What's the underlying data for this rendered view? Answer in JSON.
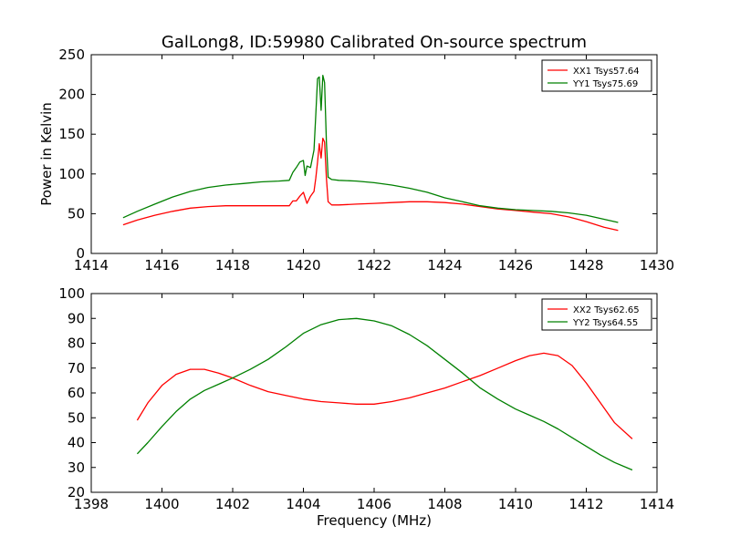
{
  "figure": {
    "title": "GalLong8, ID:59980 Calibrated On-source spectrum",
    "background": "#ffffff"
  },
  "chart_data": [
    {
      "type": "line",
      "title": "GalLong8, ID:59980 Calibrated On-source spectrum",
      "xlabel": "",
      "ylabel": "Power in Kelvin",
      "xlim": [
        1414,
        1430
      ],
      "ylim": [
        0,
        250
      ],
      "xticks": [
        "1414",
        "1416",
        "1418",
        "1420",
        "1422",
        "1424",
        "1426",
        "1428",
        "1430"
      ],
      "yticks": [
        "0",
        "50",
        "100",
        "150",
        "200",
        "250"
      ],
      "grid": false,
      "legend_position": "top-right",
      "series": [
        {
          "name": "XX1 Tsys57.64",
          "color": "#ff0000",
          "x": [
            1414.9,
            1415.3,
            1415.8,
            1416.3,
            1416.8,
            1417.3,
            1417.8,
            1418.3,
            1418.8,
            1419.3,
            1419.6,
            1419.7,
            1419.8,
            1419.9,
            1420.0,
            1420.05,
            1420.1,
            1420.2,
            1420.3,
            1420.35,
            1420.4,
            1420.45,
            1420.5,
            1420.55,
            1420.6,
            1420.65,
            1420.7,
            1420.8,
            1421.0,
            1421.5,
            1422.0,
            1422.5,
            1423.0,
            1423.5,
            1424.0,
            1424.5,
            1425.0,
            1425.5,
            1426.0,
            1426.5,
            1427.0,
            1427.5,
            1428.0,
            1428.5,
            1428.9
          ],
          "y": [
            36,
            42,
            48,
            53,
            57,
            59,
            60,
            60,
            60,
            60,
            60,
            66,
            66,
            72,
            77,
            70,
            63,
            72,
            78,
            95,
            115,
            138,
            120,
            145,
            140,
            95,
            65,
            61,
            61,
            62,
            63,
            64,
            65,
            65,
            64,
            62,
            59,
            56,
            54,
            52,
            50,
            46,
            40,
            33,
            29
          ]
        },
        {
          "name": "YY1 Tsys75.69",
          "color": "#008000",
          "x": [
            1414.9,
            1415.3,
            1415.8,
            1416.3,
            1416.8,
            1417.3,
            1417.8,
            1418.3,
            1418.8,
            1419.3,
            1419.6,
            1419.7,
            1419.8,
            1419.9,
            1420.0,
            1420.05,
            1420.1,
            1420.2,
            1420.3,
            1420.35,
            1420.4,
            1420.45,
            1420.5,
            1420.55,
            1420.6,
            1420.65,
            1420.7,
            1420.8,
            1421.0,
            1421.5,
            1422.0,
            1422.5,
            1423.0,
            1423.5,
            1424.0,
            1424.5,
            1425.0,
            1425.5,
            1426.0,
            1426.5,
            1427.0,
            1427.5,
            1428.0,
            1428.5,
            1428.9
          ],
          "y": [
            45,
            53,
            62,
            71,
            78,
            83,
            86,
            88,
            90,
            91,
            92,
            102,
            108,
            115,
            117,
            98,
            110,
            108,
            130,
            175,
            220,
            222,
            180,
            224,
            215,
            140,
            96,
            93,
            92,
            91,
            89,
            86,
            82,
            77,
            70,
            65,
            60,
            57,
            55,
            54,
            53,
            51,
            48,
            43,
            39
          ]
        }
      ]
    },
    {
      "type": "line",
      "title": "",
      "xlabel": "Frequency (MHz)",
      "ylabel": "",
      "xlim": [
        1398,
        1414
      ],
      "ylim": [
        20,
        100
      ],
      "xticks": [
        "1398",
        "1400",
        "1402",
        "1404",
        "1406",
        "1408",
        "1410",
        "1412",
        "1414"
      ],
      "yticks": [
        "20",
        "30",
        "40",
        "50",
        "60",
        "70",
        "80",
        "90",
        "100"
      ],
      "grid": false,
      "legend_position": "top-right",
      "series": [
        {
          "name": "XX2 Tsys62.65",
          "color": "#ff0000",
          "x": [
            1399.3,
            1399.6,
            1400.0,
            1400.4,
            1400.8,
            1401.2,
            1401.6,
            1402.0,
            1402.5,
            1403.0,
            1403.5,
            1404.0,
            1404.5,
            1405.0,
            1405.5,
            1406.0,
            1406.5,
            1407.0,
            1407.5,
            1408.0,
            1408.5,
            1409.0,
            1409.5,
            1410.0,
            1410.4,
            1410.8,
            1411.2,
            1411.6,
            1412.0,
            1412.4,
            1412.8,
            1413.3
          ],
          "y": [
            49,
            56,
            63,
            67.5,
            69.5,
            69.5,
            68,
            66,
            63,
            60.5,
            59,
            57.5,
            56.5,
            56,
            55.5,
            55.5,
            56.5,
            58,
            60,
            62,
            64.5,
            67,
            70,
            73,
            75,
            76,
            75,
            71,
            64,
            56,
            48,
            41.5
          ]
        },
        {
          "name": "YY2 Tsys64.55",
          "color": "#008000",
          "x": [
            1399.3,
            1399.6,
            1400.0,
            1400.4,
            1400.8,
            1401.2,
            1401.6,
            1402.0,
            1402.5,
            1403.0,
            1403.5,
            1404.0,
            1404.5,
            1405.0,
            1405.5,
            1406.0,
            1406.5,
            1407.0,
            1407.5,
            1408.0,
            1408.5,
            1409.0,
            1409.5,
            1410.0,
            1410.4,
            1410.8,
            1411.2,
            1411.6,
            1412.0,
            1412.4,
            1412.8,
            1413.3
          ],
          "y": [
            35.5,
            40,
            46.5,
            52.5,
            57.5,
            61,
            63.5,
            66,
            69.5,
            73.5,
            78.5,
            84,
            87.5,
            89.5,
            90,
            89,
            87,
            83.5,
            79,
            73.5,
            68,
            62,
            57.5,
            53.5,
            51,
            48.5,
            45.5,
            42,
            38.5,
            35,
            32,
            29
          ]
        }
      ]
    }
  ]
}
